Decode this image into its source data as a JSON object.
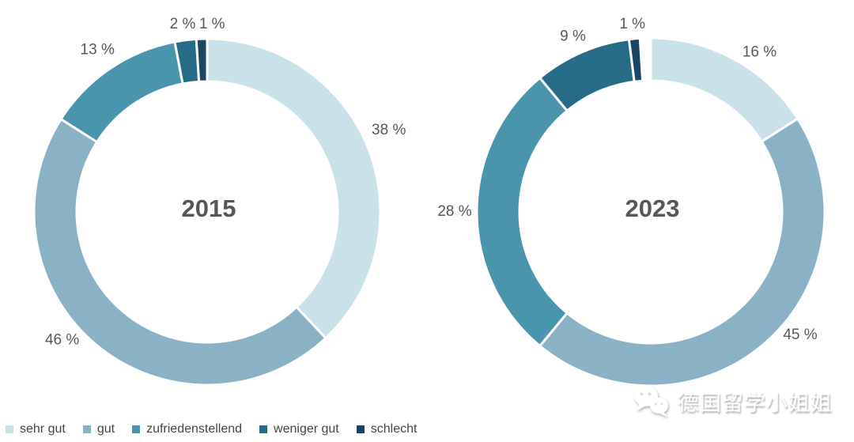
{
  "chart_data": [
    {
      "type": "pie",
      "subtype": "donut",
      "center_label": "2015",
      "unit": "%",
      "start_angle_deg": 0,
      "direction": "clockwise",
      "slices": [
        {
          "label": "sehr gut",
          "value": 38,
          "display": "38 %",
          "color": "#c9e1e9"
        },
        {
          "label": "gut",
          "value": 46,
          "display": "46 %",
          "color": "#8ab2c7"
        },
        {
          "label": "zufriedenstellend",
          "value": 13,
          "display": "13 %",
          "color": "#4a95ae"
        },
        {
          "label": "weniger gut",
          "value": 2,
          "display": "2 %",
          "color": "#266b88"
        },
        {
          "label": "schlecht",
          "value": 1,
          "display": "1 %",
          "color": "#1a4565"
        }
      ]
    },
    {
      "type": "pie",
      "subtype": "donut",
      "center_label": "2023",
      "unit": "%",
      "start_angle_deg": 0,
      "direction": "clockwise",
      "slices": [
        {
          "label": "sehr gut",
          "value": 16,
          "display": "16 %",
          "color": "#c9e1e9"
        },
        {
          "label": "gut",
          "value": 45,
          "display": "45 %",
          "color": "#8ab2c7"
        },
        {
          "label": "zufriedenstellend",
          "value": 28,
          "display": "28 %",
          "color": "#4a95ae"
        },
        {
          "label": "weniger gut",
          "value": 9,
          "display": "9 %",
          "color": "#266b88"
        },
        {
          "label": "schlecht",
          "value": 1,
          "display": "1 %",
          "color": "#1a4565"
        }
      ]
    }
  ],
  "legend": {
    "items": [
      {
        "label": "sehr gut",
        "color": "#c9e1e9"
      },
      {
        "label": "gut",
        "color": "#8ab2c7"
      },
      {
        "label": "zufriedenstellend",
        "color": "#4a95ae"
      },
      {
        "label": "weniger gut",
        "color": "#266b88"
      },
      {
        "label": "schlecht",
        "color": "#1a4565"
      }
    ]
  },
  "watermark": {
    "text": "德国留学小姐姐"
  },
  "colors": {
    "label_text": "#575756",
    "legend_text": "#454545",
    "segment_gap": "#ffffff",
    "background": "#ffffff"
  }
}
